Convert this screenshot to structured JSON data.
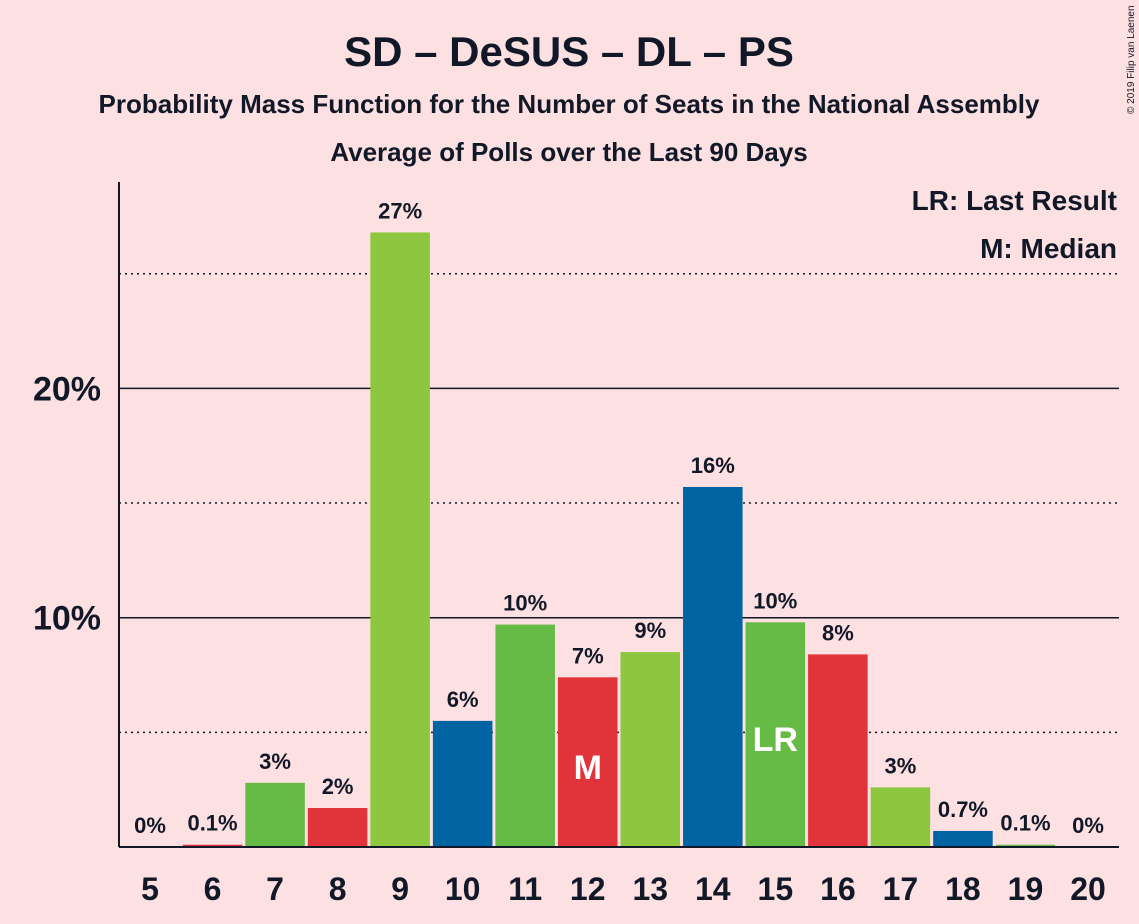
{
  "chart_data": {
    "type": "bar",
    "title": "SD – DeSUS – DL – PS",
    "subtitle": "Probability Mass Function for the Number of Seats in the National Assembly",
    "subtitle2": "Average of Polls over the Last 90 Days",
    "copyright": "© 2019 Filip van Laenen",
    "categories": [
      "5",
      "6",
      "7",
      "8",
      "9",
      "10",
      "11",
      "12",
      "13",
      "14",
      "15",
      "16",
      "17",
      "18",
      "19",
      "20"
    ],
    "values": [
      0,
      0.1,
      2.8,
      1.7,
      26.8,
      5.5,
      9.7,
      7.4,
      8.5,
      15.7,
      9.8,
      8.4,
      2.6,
      0.7,
      0.1,
      0
    ],
    "labels": [
      "0%",
      "0.1%",
      "3%",
      "2%",
      "27%",
      "6%",
      "10%",
      "7%",
      "9%",
      "16%",
      "10%",
      "8%",
      "3%",
      "0.7%",
      "0.1%",
      "0%"
    ],
    "colors": [
      "#8dc63f",
      "#e1343a",
      "#66bb46",
      "#e1343a",
      "#8dc63f",
      "#0064a3",
      "#66bb46",
      "#e1343a",
      "#8dc63f",
      "#0064a3",
      "#66bb46",
      "#e1343a",
      "#8dc63f",
      "#0064a3",
      "#66bb46",
      "#e1343a"
    ],
    "ylim": [
      0,
      29
    ],
    "yticks": [
      10,
      20
    ],
    "ytick_labels": [
      "10%",
      "20%"
    ],
    "minor_gridlines": [
      5,
      15,
      25
    ],
    "median_category": "12",
    "median_marker": "M",
    "last_result_category": "15",
    "last_result_marker": "LR",
    "legend": [
      "LR: Last Result",
      "M: Median"
    ],
    "legend_position": "top-right",
    "grid": true
  }
}
